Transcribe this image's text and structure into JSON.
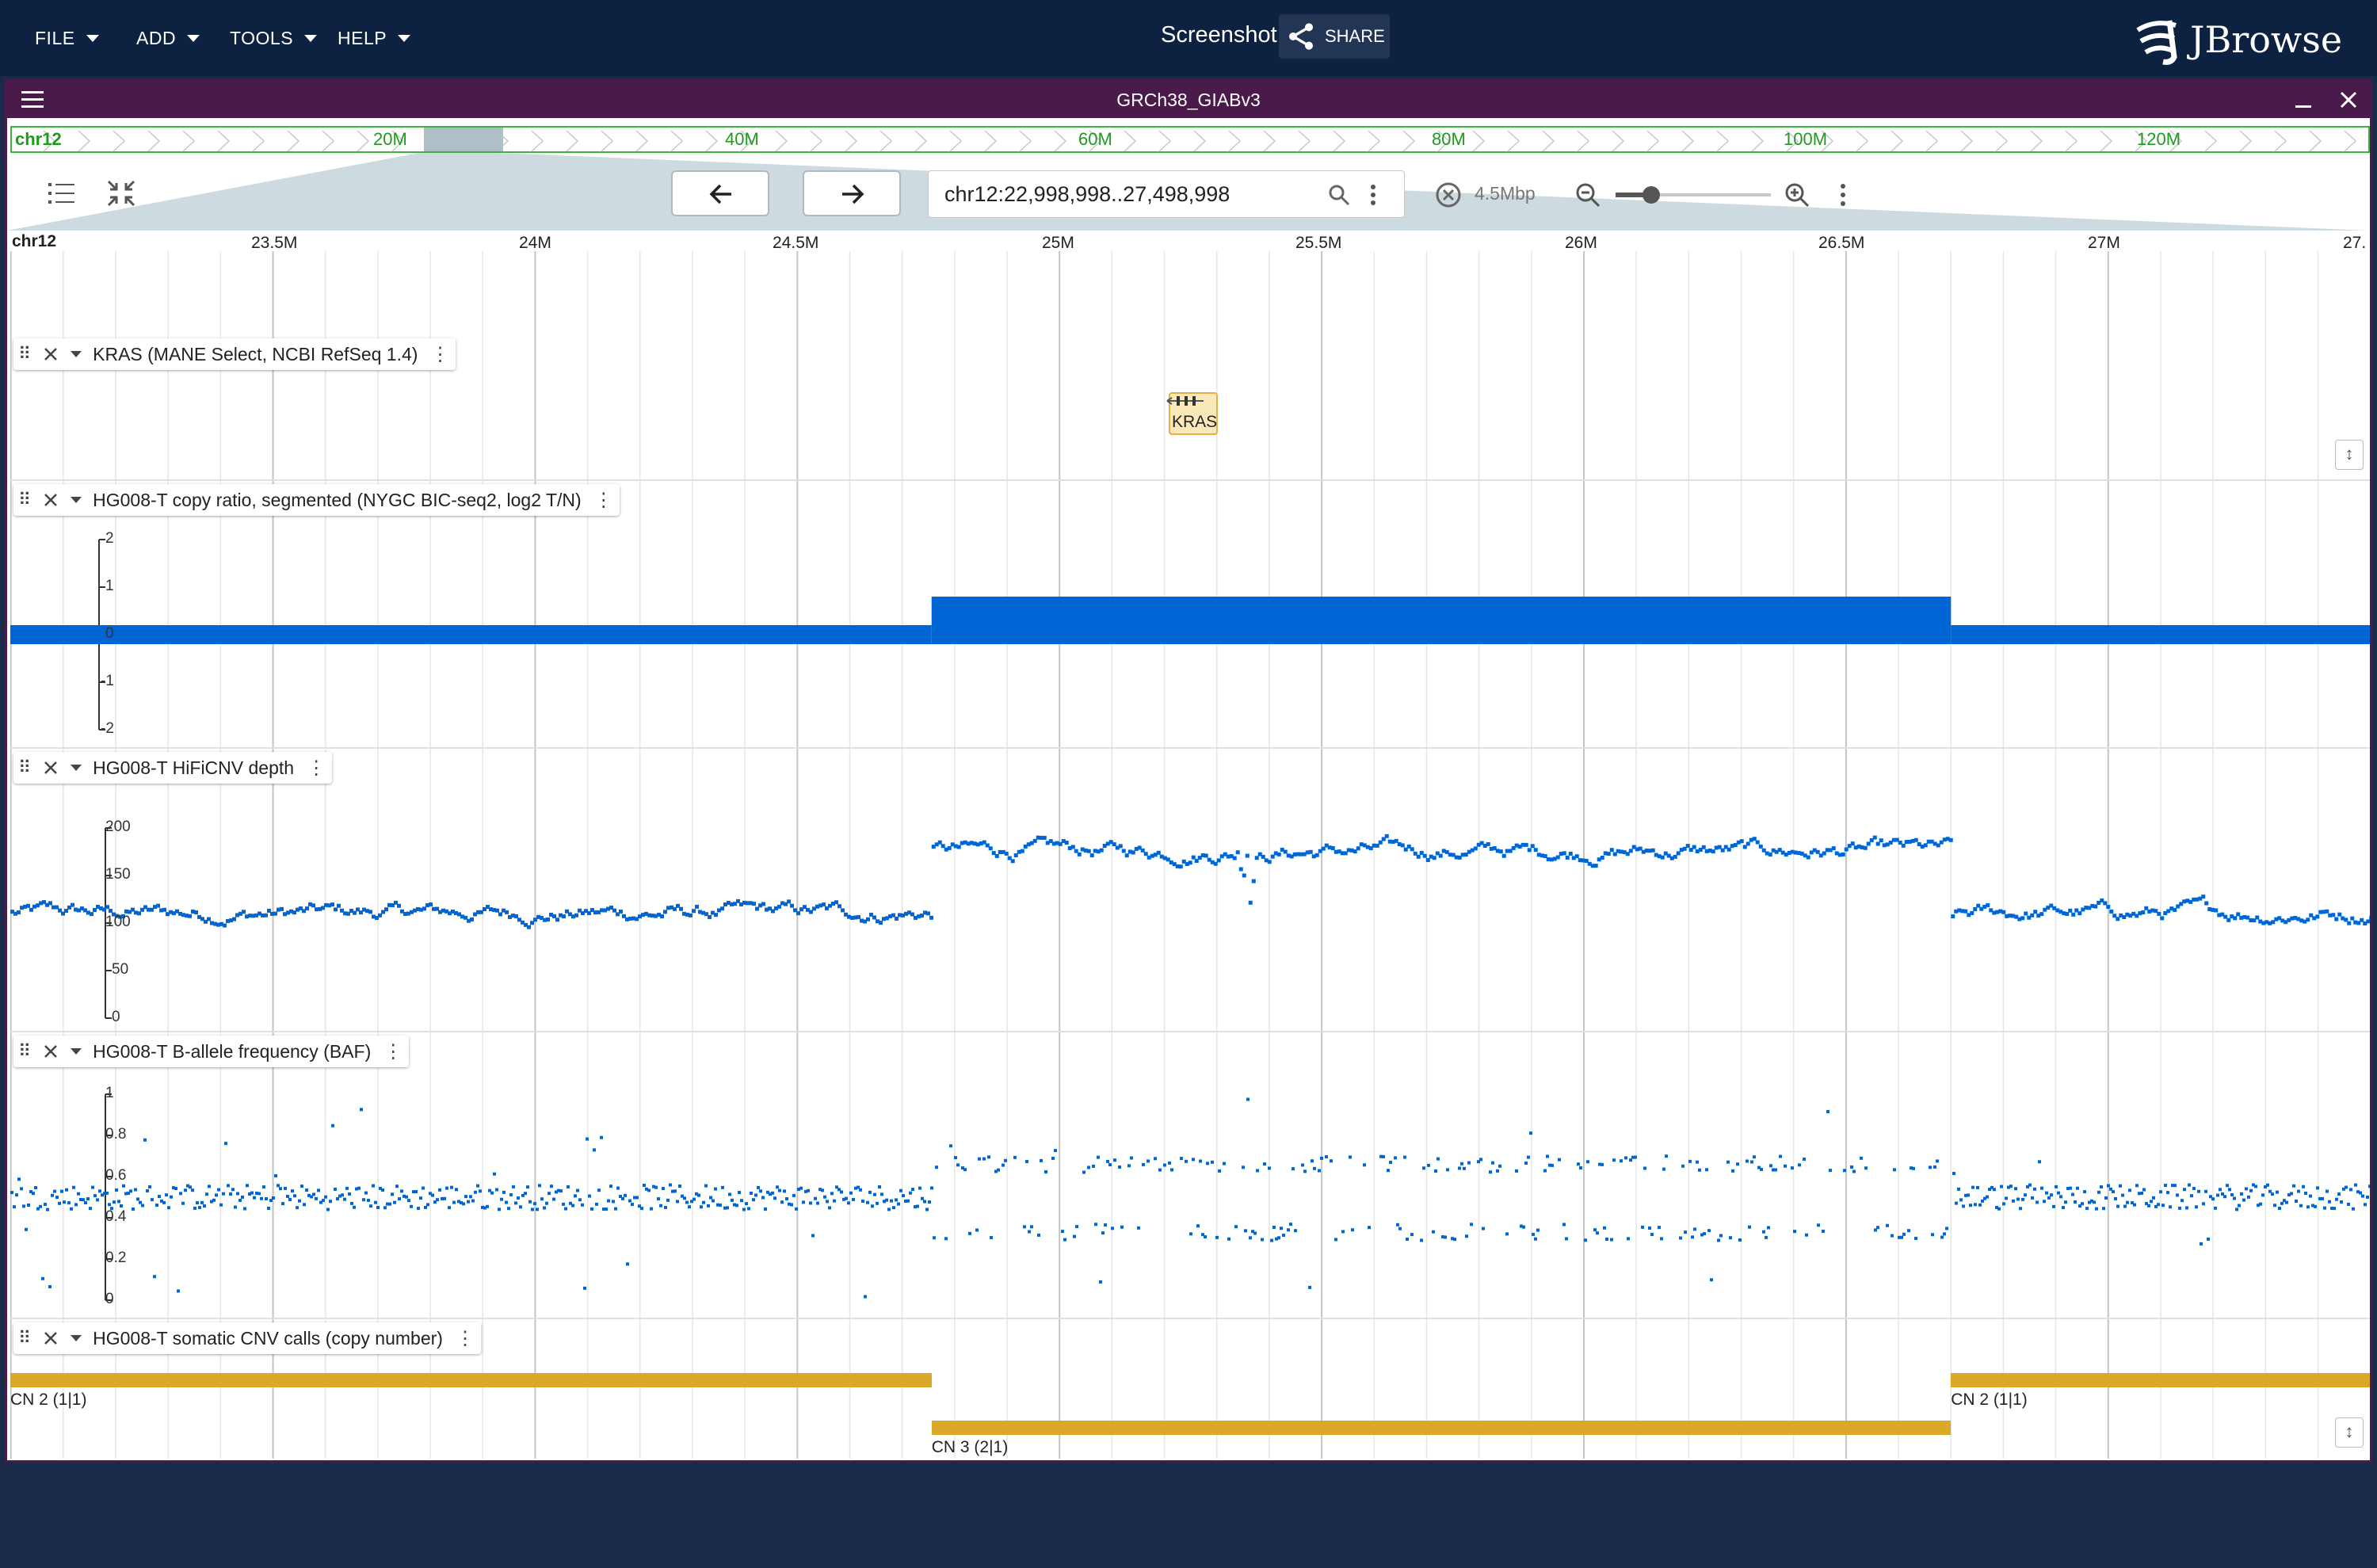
{
  "app": {
    "menus": [
      "FILE",
      "ADD",
      "TOOLS",
      "HELP"
    ],
    "session_name": "Screenshot",
    "share_label": "SHARE",
    "logo_text": "JBrowse"
  },
  "view": {
    "title": "GRCh38_GIABv3",
    "overview": {
      "chrom": "chr12",
      "labels": [
        "20M",
        "40M",
        "60M",
        "80M",
        "100M",
        "120M"
      ]
    },
    "locstring": "chr12:22,998,998..27,498,998",
    "bp_width": "4.5Mbp",
    "ruler": {
      "chrom": "chr12",
      "labels": [
        "23.5M",
        "24M",
        "24.5M",
        "25M",
        "25.5M",
        "26M",
        "26.5M",
        "27M",
        "27."
      ]
    }
  },
  "colors": {
    "appbar": "#0d2140",
    "view_header": "#4a1a4a",
    "data_blue": "#0066d6",
    "cnv_gold": "#dba928",
    "overview_green": "#3db33d"
  },
  "tracks": {
    "kras": {
      "label": "KRAS (MANE Select, NCBI RefSeq 1.4)",
      "feature_label": "KRAS"
    },
    "copy_ratio": {
      "label": "HG008-T copy ratio, segmented (NYGC BIC-seq2, log2 T/N)",
      "axis_ticks": [
        "2",
        "1",
        "0",
        "-1",
        "-2"
      ],
      "segments": [
        {
          "start": 22998998,
          "end": 24756000,
          "value": 0.2
        },
        {
          "start": 24756000,
          "end": 26700000,
          "value": 0.8
        },
        {
          "start": 26700000,
          "end": 27498998,
          "value": 0.2
        }
      ]
    },
    "depth": {
      "label": "HG008-T HiFiCNV depth",
      "axis_ticks": [
        "200",
        "150",
        "100",
        "50",
        "0"
      ],
      "segments": [
        {
          "start": 22998998,
          "end": 24756000,
          "mean": 110
        },
        {
          "start": 24756000,
          "end": 26700000,
          "mean": 175
        },
        {
          "start": 26700000,
          "end": 27498998,
          "mean": 110
        }
      ]
    },
    "baf": {
      "label": "HG008-T B-allele frequency (BAF)",
      "axis_ticks": [
        "1",
        "0.8",
        "0.6",
        "0.4",
        "0.2",
        "0"
      ]
    },
    "cnv": {
      "label": "HG008-T somatic CNV calls (copy number)",
      "calls": [
        {
          "start": 22998998,
          "end": 24756000,
          "label": "CN 2 (1|1)",
          "row": 0
        },
        {
          "start": 24756000,
          "end": 26700000,
          "label": "CN 3 (2|1)",
          "row": 1
        },
        {
          "start": 26700000,
          "end": 27498998,
          "label": "CN 2 (1|1)",
          "row": 0
        }
      ]
    }
  }
}
